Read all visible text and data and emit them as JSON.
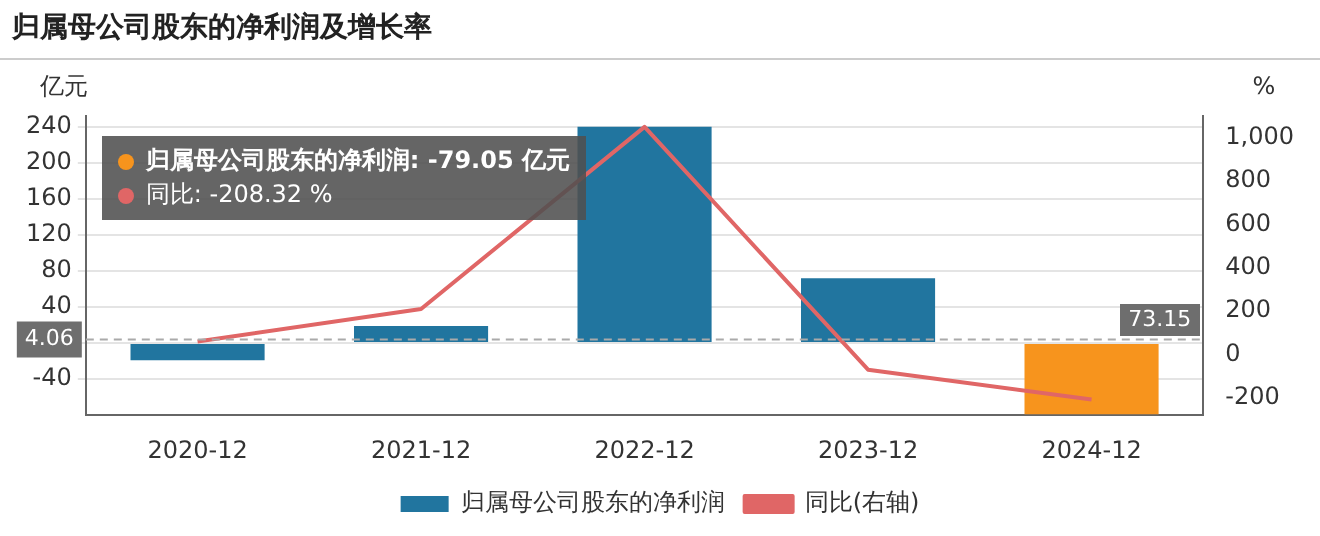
{
  "chart_data": {
    "type": "bar",
    "title": "归属母公司股东的净利润及增长率",
    "ylabel": "亿元",
    "y2label": "%",
    "categories": [
      "2020-12",
      "2021-12",
      "2022-12",
      "2023-12",
      "2024-12"
    ],
    "series": [
      {
        "name": "归属母公司股东的净利润",
        "color": "#21759f",
        "colors": [
          "#21759f",
          "#21759f",
          "#21759f",
          "#21759f",
          "#f7941d"
        ],
        "values": [
          -19,
          19,
          240,
          72,
          -79
        ]
      },
      {
        "name": "同比(右轴)",
        "type": "line",
        "axis": "y2",
        "color": "#e06666",
        "values": [
          60,
          210,
          1050,
          -70,
          -208
        ]
      }
    ],
    "ylim": [
      -80,
      252
    ],
    "yticks": [
      -40,
      {
        "value": 0,
        "label": null
      },
      40,
      80,
      120,
      160,
      200,
      240
    ],
    "y2lim": [
      -280,
      1100
    ],
    "y2ticks": [
      -200,
      0,
      200,
      400,
      600,
      800,
      {
        "value": 1000,
        "label": "1,000"
      }
    ],
    "ref_lines": [
      {
        "axis": "y",
        "value": 4.06,
        "label": "4.06"
      }
    ],
    "annotations": [
      "73.15",
      "归属母公司股东的净利润: -79.05  亿元",
      "同比: -208.32  %"
    ],
    "grid": "y",
    "legend": "bottom",
    "marker": "none"
  }
}
